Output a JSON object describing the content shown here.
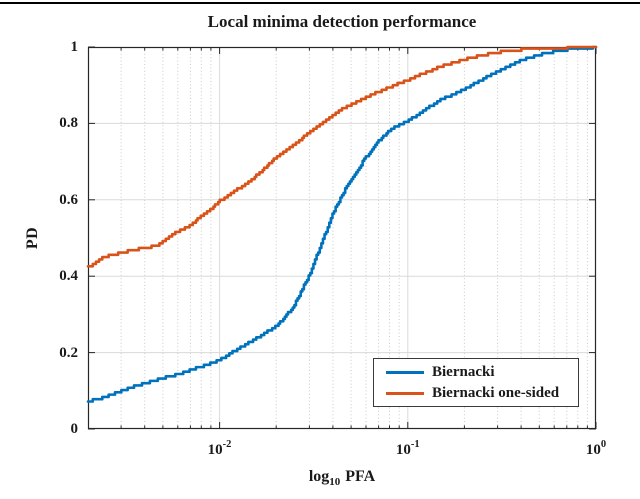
{
  "page": {
    "background": "#ffffff",
    "top_rule_color": "#000000"
  },
  "chart_data": {
    "type": "line",
    "title": "Local minima detection performance",
    "ylabel": "PD",
    "xlabel": {
      "prefix": "log",
      "subscript": "10",
      "suffix": "PFA"
    },
    "x_scale": "log",
    "xlim": [
      0.002,
      1
    ],
    "ylim": [
      0,
      1
    ],
    "grid": {
      "major": true,
      "minor_x": true,
      "minor_style": "dotted"
    },
    "axis_color": "#262626",
    "major_grid_color": "#dadada",
    "minor_grid_color": "#c9c9c9",
    "x_major_ticks": [
      {
        "value": 0.01,
        "label_base": "10",
        "label_exp": "-2"
      },
      {
        "value": 0.1,
        "label_base": "10",
        "label_exp": "-1"
      },
      {
        "value": 1,
        "label_base": "10",
        "label_exp": "0"
      }
    ],
    "y_ticks": [
      {
        "value": 0,
        "label": "0"
      },
      {
        "value": 0.2,
        "label": "0.2"
      },
      {
        "value": 0.4,
        "label": "0.4"
      },
      {
        "value": 0.6,
        "label": "0.6"
      },
      {
        "value": 0.8,
        "label": "0.8"
      },
      {
        "value": 1,
        "label": "1"
      }
    ],
    "legend_position": "bottom-right",
    "series": [
      {
        "name": "Biernacki",
        "color": "#0072BD",
        "points": [
          [
            0.002,
            0.072
          ],
          [
            0.0024,
            0.082
          ],
          [
            0.003,
            0.1
          ],
          [
            0.0035,
            0.111
          ],
          [
            0.004,
            0.12
          ],
          [
            0.005,
            0.134
          ],
          [
            0.006,
            0.143
          ],
          [
            0.007,
            0.154
          ],
          [
            0.008,
            0.164
          ],
          [
            0.009,
            0.172
          ],
          [
            0.01,
            0.181
          ],
          [
            0.0125,
            0.21
          ],
          [
            0.015,
            0.232
          ],
          [
            0.0175,
            0.252
          ],
          [
            0.02,
            0.27
          ],
          [
            0.0225,
            0.296
          ],
          [
            0.025,
            0.325
          ],
          [
            0.03,
            0.405
          ],
          [
            0.035,
            0.49
          ],
          [
            0.04,
            0.565
          ],
          [
            0.045,
            0.615
          ],
          [
            0.05,
            0.655
          ],
          [
            0.06,
            0.712
          ],
          [
            0.07,
            0.755
          ],
          [
            0.08,
            0.782
          ],
          [
            0.09,
            0.796
          ],
          [
            0.1,
            0.806
          ],
          [
            0.125,
            0.838
          ],
          [
            0.15,
            0.862
          ],
          [
            0.175,
            0.877
          ],
          [
            0.2,
            0.89
          ],
          [
            0.25,
            0.916
          ],
          [
            0.3,
            0.936
          ],
          [
            0.35,
            0.953
          ],
          [
            0.4,
            0.966
          ],
          [
            0.5,
            0.98
          ],
          [
            0.6,
            0.988
          ],
          [
            0.7,
            0.993
          ],
          [
            0.8,
            0.996
          ],
          [
            0.9,
            0.998
          ],
          [
            1.0,
            1.0
          ]
        ]
      },
      {
        "name": "Biernacki one-sided",
        "color": "#D95319",
        "points": [
          [
            0.002,
            0.423
          ],
          [
            0.0022,
            0.437
          ],
          [
            0.0024,
            0.45
          ],
          [
            0.003,
            0.462
          ],
          [
            0.0035,
            0.468
          ],
          [
            0.004,
            0.475
          ],
          [
            0.0046,
            0.479
          ],
          [
            0.005,
            0.49
          ],
          [
            0.0055,
            0.505
          ],
          [
            0.006,
            0.518
          ],
          [
            0.007,
            0.533
          ],
          [
            0.008,
            0.558
          ],
          [
            0.009,
            0.575
          ],
          [
            0.01,
            0.597
          ],
          [
            0.0125,
            0.628
          ],
          [
            0.015,
            0.655
          ],
          [
            0.0175,
            0.685
          ],
          [
            0.02,
            0.712
          ],
          [
            0.025,
            0.745
          ],
          [
            0.03,
            0.778
          ],
          [
            0.035,
            0.802
          ],
          [
            0.04,
            0.822
          ],
          [
            0.045,
            0.838
          ],
          [
            0.05,
            0.85
          ],
          [
            0.06,
            0.868
          ],
          [
            0.07,
            0.883
          ],
          [
            0.08,
            0.895
          ],
          [
            0.09,
            0.905
          ],
          [
            0.1,
            0.914
          ],
          [
            0.125,
            0.934
          ],
          [
            0.15,
            0.949
          ],
          [
            0.2,
            0.968
          ],
          [
            0.25,
            0.979
          ],
          [
            0.3,
            0.986
          ],
          [
            0.35,
            0.99
          ],
          [
            0.4,
            0.993
          ],
          [
            0.5,
            0.997
          ],
          [
            0.6,
            0.998
          ],
          [
            0.8,
            1.0
          ],
          [
            1.0,
            1.0
          ]
        ]
      }
    ]
  }
}
